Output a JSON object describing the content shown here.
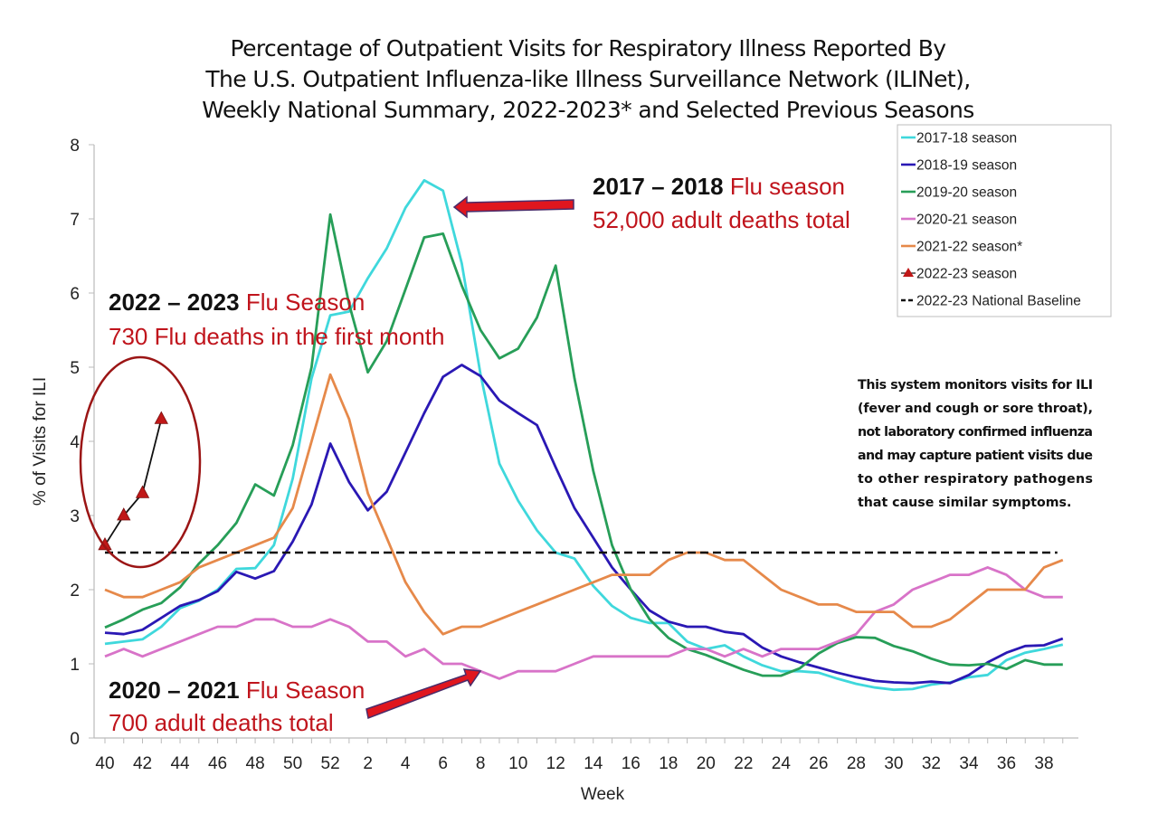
{
  "chart_data": {
    "type": "line",
    "title": [
      "Percentage of Outpatient Visits for Respiratory Illness Reported By",
      "The U.S. Outpatient Influenza-like Illness Surveillance Network (ILINet),",
      "Weekly National Summary, 2022-2023* and Selected Previous Seasons"
    ],
    "xlabel": "Week",
    "ylabel": "% of Visits for ILI",
    "ylim": [
      0,
      8
    ],
    "yticks": [
      0,
      1,
      2,
      3,
      4,
      5,
      6,
      7,
      8
    ],
    "x": [
      40,
      41,
      42,
      43,
      44,
      45,
      46,
      47,
      48,
      49,
      50,
      51,
      52,
      1,
      2,
      3,
      4,
      5,
      6,
      7,
      8,
      9,
      10,
      11,
      12,
      13,
      14,
      15,
      16,
      17,
      18,
      19,
      20,
      21,
      22,
      23,
      24,
      25,
      26,
      27,
      28,
      29,
      30,
      31,
      32,
      33,
      34,
      35,
      36,
      37,
      38,
      39
    ],
    "xtick_labels": [
      "40",
      "42",
      "44",
      "46",
      "48",
      "50",
      "52",
      "2",
      "4",
      "6",
      "8",
      "10",
      "12",
      "14",
      "16",
      "18",
      "20",
      "22",
      "24",
      "26",
      "28",
      "30",
      "32",
      "34",
      "36",
      "38"
    ],
    "grid": false,
    "legend_position": "top-right",
    "series": [
      {
        "name": "2017-18 season",
        "color": "#3fd8dc",
        "values": [
          1.27,
          1.3,
          1.33,
          1.5,
          1.75,
          1.85,
          2.0,
          2.28,
          2.29,
          2.6,
          3.5,
          4.85,
          5.7,
          5.75,
          6.2,
          6.6,
          7.15,
          7.52,
          7.38,
          6.4,
          4.9,
          3.7,
          3.2,
          2.8,
          2.5,
          2.42,
          2.05,
          1.78,
          1.62,
          1.55,
          1.55,
          1.3,
          1.2,
          1.25,
          1.1,
          0.98,
          0.9,
          0.9,
          0.88,
          0.8,
          0.73,
          0.68,
          0.65,
          0.66,
          0.72,
          0.75,
          0.82,
          0.85,
          1.05,
          1.15,
          1.2,
          1.26
        ]
      },
      {
        "name": "2018-19 season",
        "color": "#2a18b4",
        "values": [
          1.42,
          1.4,
          1.46,
          1.62,
          1.78,
          1.86,
          1.98,
          2.24,
          2.15,
          2.25,
          2.65,
          3.15,
          3.97,
          3.45,
          3.07,
          3.32,
          3.85,
          4.38,
          4.87,
          5.03,
          4.88,
          4.55,
          4.38,
          4.22,
          3.65,
          3.1,
          2.7,
          2.3,
          2.0,
          1.72,
          1.57,
          1.5,
          1.5,
          1.43,
          1.4,
          1.22,
          1.1,
          1.02,
          0.95,
          0.88,
          0.82,
          0.77,
          0.75,
          0.74,
          0.76,
          0.74,
          0.85,
          1.02,
          1.15,
          1.24,
          1.25,
          1.34
        ]
      },
      {
        "name": "2019-20 season",
        "color": "#279e58",
        "values": [
          1.49,
          1.6,
          1.73,
          1.82,
          2.03,
          2.35,
          2.6,
          2.9,
          3.42,
          3.27,
          3.95,
          5.0,
          7.06,
          5.85,
          4.93,
          5.35,
          6.05,
          6.75,
          6.8,
          6.1,
          5.5,
          5.12,
          5.25,
          5.67,
          6.37,
          4.85,
          3.6,
          2.6,
          2.0,
          1.6,
          1.35,
          1.2,
          1.12,
          1.02,
          0.92,
          0.84,
          0.84,
          0.94,
          1.14,
          1.28,
          1.36,
          1.35,
          1.24,
          1.17,
          1.07,
          0.99,
          0.98,
          1.0,
          0.93,
          1.05,
          0.99,
          0.99
        ]
      },
      {
        "name": "2020-21 season",
        "color": "#d873c8",
        "values": [
          1.1,
          1.2,
          1.1,
          1.2,
          1.3,
          1.4,
          1.5,
          1.5,
          1.6,
          1.6,
          1.5,
          1.5,
          1.6,
          1.5,
          1.3,
          1.3,
          1.1,
          1.2,
          1.0,
          1.0,
          0.9,
          0.8,
          0.9,
          0.9,
          0.9,
          1.0,
          1.1,
          1.1,
          1.1,
          1.1,
          1.1,
          1.2,
          1.2,
          1.1,
          1.2,
          1.1,
          1.2,
          1.2,
          1.2,
          1.3,
          1.4,
          1.7,
          1.8,
          2.0,
          2.1,
          2.2,
          2.2,
          2.3,
          2.2,
          2.0,
          1.9,
          1.9
        ]
      },
      {
        "name": "2021-22 season*",
        "color": "#e6894a",
        "values": [
          2.0,
          1.9,
          1.9,
          2.0,
          2.1,
          2.3,
          2.4,
          2.5,
          2.6,
          2.7,
          3.1,
          4.0,
          4.9,
          4.3,
          3.3,
          2.7,
          2.1,
          1.7,
          1.4,
          1.5,
          1.5,
          1.6,
          1.7,
          1.8,
          1.9,
          2.0,
          2.1,
          2.2,
          2.2,
          2.2,
          2.4,
          2.5,
          2.5,
          2.4,
          2.4,
          2.2,
          2.0,
          1.9,
          1.8,
          1.8,
          1.7,
          1.7,
          1.7,
          1.5,
          1.5,
          1.6,
          1.8,
          2.0,
          2.0,
          2.0,
          2.3,
          2.4
        ]
      },
      {
        "name": "2022-23 season",
        "color": "#c01818",
        "line_color": "#111111",
        "marker": "triangle",
        "values": [
          2.6,
          3.0,
          3.3,
          4.3
        ]
      },
      {
        "name": "2022-23 National Baseline",
        "color": "#111111",
        "dashed": true,
        "constant": 2.5
      }
    ],
    "annotations": [
      {
        "bold": "2022 – 2023",
        "rest": " Flu Season",
        "line2": "730 Flu deaths in the first month"
      },
      {
        "bold": "2017 – 2018",
        "rest": " Flu season",
        "line2": "52,000 adult deaths total"
      },
      {
        "bold": "2020 – 2021",
        "rest": " Flu Season",
        "line2": "700 adult deaths total"
      }
    ],
    "note": [
      "This system monitors visits for ILI",
      "(fever and cough or sore throat),",
      "not laboratory confirmed influenza",
      "and may capture patient visits due",
      "to other respiratory pathogens",
      "that cause similar symptoms."
    ]
  }
}
